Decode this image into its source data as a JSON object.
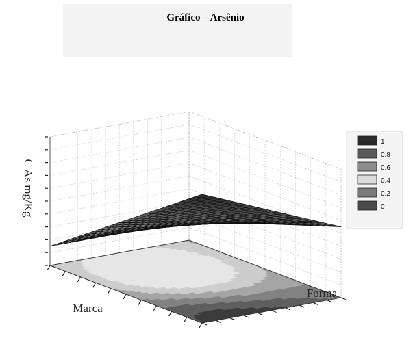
{
  "chart_data": {
    "type": "surface3d",
    "title": "Gráfico – Arsênio",
    "zlabel": "C As mg/Kg",
    "xlabel": "Marca",
    "ylabel": "Forma",
    "x_range": [
      0,
      1
    ],
    "y_range": [
      0,
      1
    ],
    "z_range": [
      0,
      1
    ],
    "surface_corners": {
      "x0_y0": 0.15,
      "x1_y0": 1.0,
      "x0_y1": 0.15,
      "x1_y1": 0.55
    },
    "mesh": 22,
    "contour_projection": true,
    "grid": true,
    "legend_position": "right",
    "legend": [
      {
        "label": "1",
        "color": "#2a2a2a"
      },
      {
        "label": "0.8",
        "color": "#5a5a5a"
      },
      {
        "label": "0.6",
        "color": "#8c8c8c"
      },
      {
        "label": "0.4",
        "color": "#dcdcdc"
      },
      {
        "label": "0.2",
        "color": "#7a7a7a"
      },
      {
        "label": "0",
        "color": "#4a4a4a"
      }
    ]
  }
}
